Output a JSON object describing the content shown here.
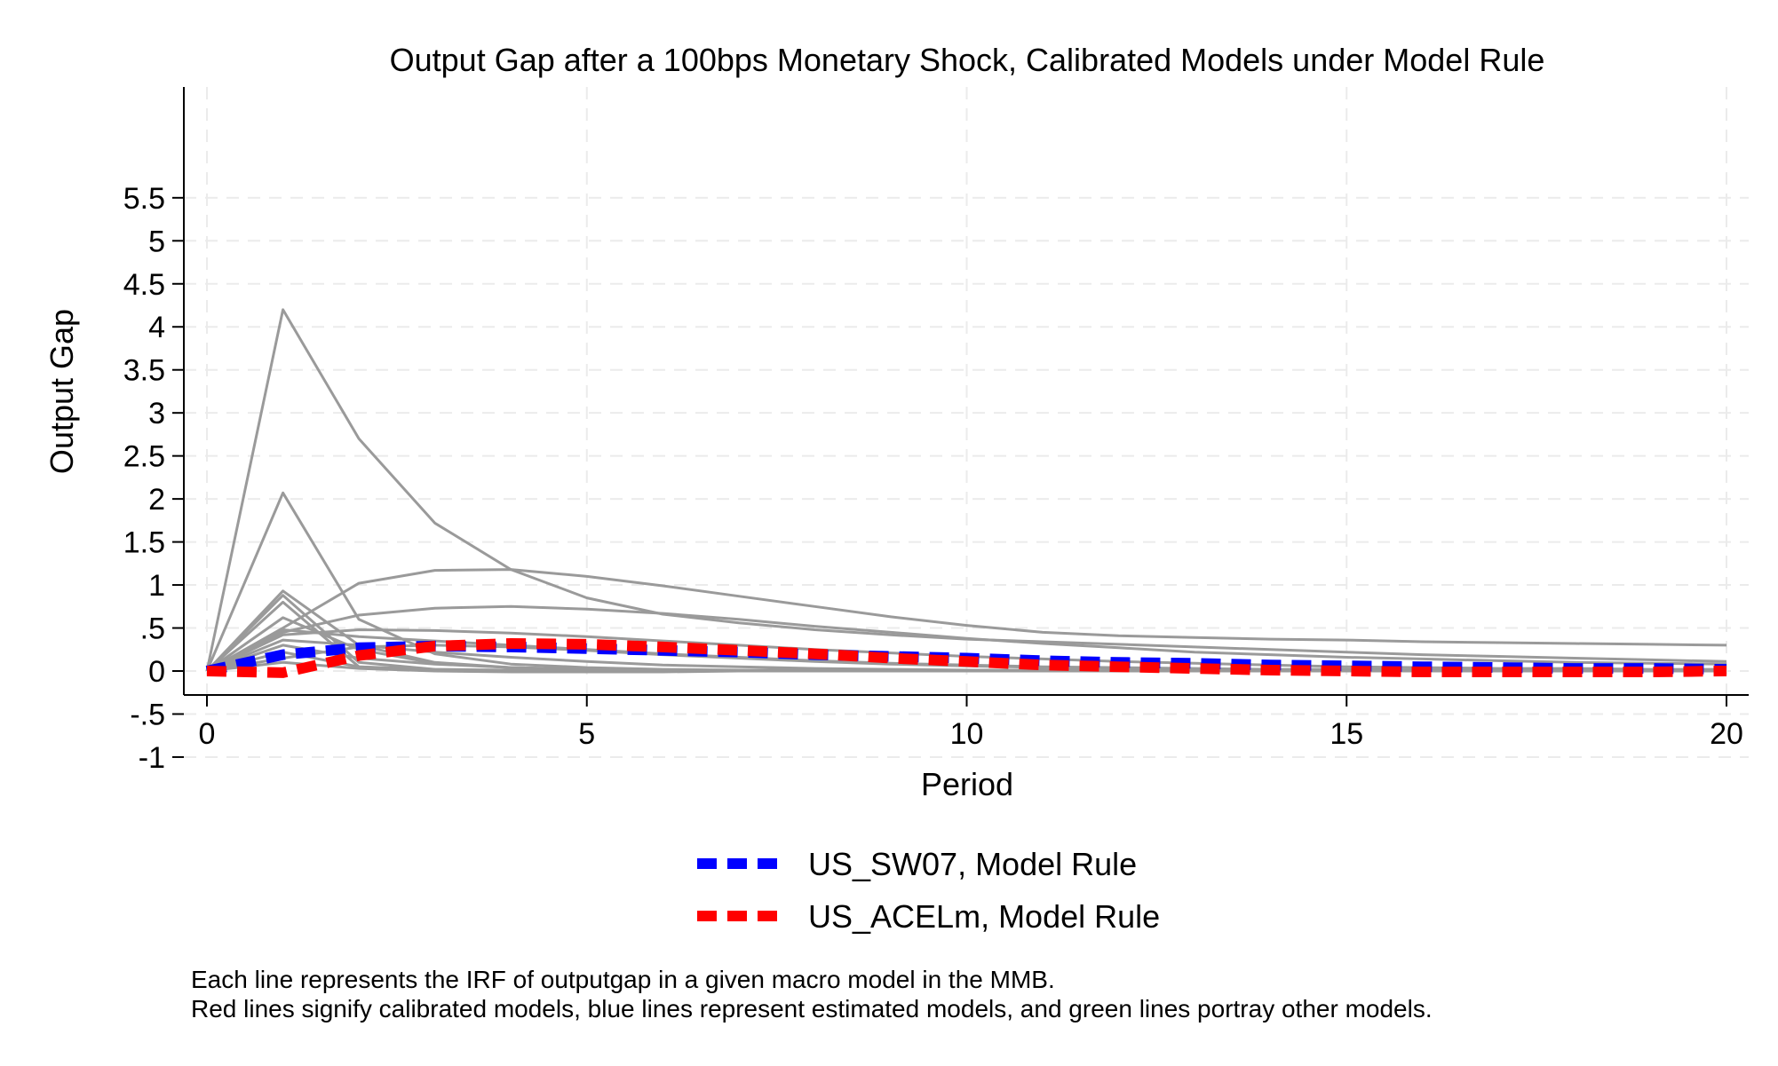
{
  "chart_data": {
    "type": "line",
    "title": "Output Gap after a 100bps Monetary Shock, Calibrated Models under Model Rule",
    "xlabel": "Period",
    "ylabel": "Output Gap",
    "xlim": [
      0,
      20
    ],
    "ylim": [
      -1,
      5.5
    ],
    "xticks": [
      0,
      5,
      10,
      15,
      20
    ],
    "xtick_labels": [
      "0",
      "5",
      "10",
      "15",
      "20"
    ],
    "yticks": [
      -1,
      -0.5,
      0,
      0.5,
      1,
      1.5,
      2,
      2.5,
      3,
      3.5,
      4,
      4.5,
      5,
      5.5
    ],
    "ytick_labels": [
      "-1",
      "-.5",
      "0",
      ".5",
      "1",
      "1.5",
      "2",
      "2.5",
      "3",
      "3.5",
      "4",
      "4.5",
      "5",
      "5.5"
    ],
    "grid": true,
    "legend_position": "bottom",
    "x": [
      0,
      1,
      2,
      3,
      4,
      5,
      6,
      7,
      8,
      9,
      10,
      11,
      12,
      13,
      14,
      15,
      16,
      17,
      18,
      19,
      20
    ],
    "background_series_color": "#9a9a9a",
    "background_series": [
      [
        0,
        4.2,
        2.7,
        1.72,
        1.18,
        0.85,
        0.66,
        0.56,
        0.48,
        0.42,
        0.37,
        0.34,
        0.31,
        0.28,
        0.25,
        0.22,
        0.19,
        0.17,
        0.15,
        0.13,
        0.11
      ],
      [
        0,
        2.07,
        0.6,
        0.2,
        0.08,
        0.04,
        0.02,
        0.01,
        0.01,
        0.0,
        0.0,
        0.0,
        0.0,
        0.0,
        0.0,
        0.0,
        0.0,
        0.0,
        0.0,
        0.0,
        0.0
      ],
      [
        0,
        0.5,
        1.02,
        1.17,
        1.18,
        1.1,
        0.99,
        0.87,
        0.75,
        0.63,
        0.53,
        0.45,
        0.41,
        0.39,
        0.37,
        0.36,
        0.34,
        0.33,
        0.32,
        0.31,
        0.3
      ],
      [
        0,
        0.45,
        0.65,
        0.73,
        0.75,
        0.72,
        0.67,
        0.6,
        0.52,
        0.45,
        0.38,
        0.32,
        0.27,
        0.22,
        0.19,
        0.16,
        0.14,
        0.12,
        0.1,
        0.09,
        0.08
      ],
      [
        0,
        0.93,
        0.3,
        0.1,
        0.04,
        0.02,
        0.01,
        0.0,
        0.0,
        0.0,
        0.0,
        0.0,
        0.0,
        0.0,
        0.0,
        0.0,
        0.0,
        0.0,
        0.0,
        0.0,
        0.0
      ],
      [
        0,
        0.88,
        0.1,
        0.02,
        0.0,
        0.0,
        0.0,
        0.0,
        0.0,
        0.0,
        0.0,
        0.0,
        0.0,
        0.0,
        0.0,
        0.0,
        0.0,
        0.0,
        0.0,
        0.0,
        0.0
      ],
      [
        0,
        0.62,
        0.25,
        0.09,
        0.04,
        0.02,
        0.01,
        0.0,
        0.0,
        0.0,
        0.0,
        0.0,
        0.0,
        0.0,
        0.0,
        0.0,
        0.0,
        0.0,
        0.0,
        0.0,
        0.0
      ],
      [
        0,
        0.48,
        0.4,
        0.35,
        0.3,
        0.25,
        0.2,
        0.16,
        0.12,
        0.09,
        0.07,
        0.05,
        0.04,
        0.03,
        0.02,
        0.02,
        0.01,
        0.01,
        0.01,
        0.0,
        0.0
      ],
      [
        0,
        0.42,
        0.48,
        0.47,
        0.44,
        0.4,
        0.35,
        0.3,
        0.25,
        0.21,
        0.17,
        0.14,
        0.11,
        0.09,
        0.07,
        0.05,
        0.04,
        0.03,
        0.03,
        0.02,
        0.02
      ],
      [
        0,
        0.36,
        0.3,
        0.22,
        0.16,
        0.11,
        0.07,
        0.05,
        0.03,
        0.02,
        0.01,
        0.01,
        0.0,
        0.0,
        0.0,
        0.0,
        0.0,
        0.0,
        0.0,
        0.0,
        0.0
      ],
      [
        0,
        0.3,
        0.15,
        0.08,
        0.04,
        0.02,
        0.01,
        0.0,
        0.0,
        0.0,
        0.0,
        0.0,
        0.0,
        0.0,
        0.0,
        0.0,
        0.0,
        0.0,
        0.0,
        0.0,
        0.0
      ],
      [
        0,
        0.22,
        0.05,
        0.01,
        0.0,
        0.0,
        0.0,
        0.0,
        0.0,
        0.0,
        0.0,
        0.0,
        0.0,
        0.0,
        0.0,
        0.0,
        0.0,
        0.0,
        0.0,
        0.0,
        0.0
      ],
      [
        0,
        0.15,
        0.28,
        0.3,
        0.28,
        0.24,
        0.19,
        0.15,
        0.11,
        0.08,
        0.06,
        0.04,
        0.03,
        0.02,
        0.01,
        0.01,
        0.0,
        0.0,
        0.0,
        0.0,
        0.0
      ],
      [
        0,
        0.8,
        0.05,
        0.02,
        0.01,
        0.0,
        0.0,
        0.0,
        0.0,
        0.0,
        0.0,
        0.0,
        0.0,
        0.0,
        0.0,
        0.0,
        0.0,
        0.0,
        0.0,
        0.0,
        0.0
      ],
      [
        0,
        0.1,
        0.03,
        0.0,
        -0.01,
        -0.01,
        -0.01,
        0.0,
        0.0,
        0.0,
        0.0,
        0.0,
        0.0,
        0.0,
        0.0,
        0.0,
        0.0,
        0.0,
        0.0,
        0.0,
        0.0
      ]
    ],
    "series": [
      {
        "name": "US_SW07, Model Rule",
        "color": "#0000ff",
        "values": [
          0,
          0.19,
          0.27,
          0.29,
          0.28,
          0.26,
          0.24,
          0.22,
          0.19,
          0.17,
          0.15,
          0.12,
          0.1,
          0.09,
          0.07,
          0.06,
          0.05,
          0.04,
          0.03,
          0.03,
          0.02
        ]
      },
      {
        "name": "US_ACELm, Model Rule",
        "color": "#ff0000",
        "values": [
          0,
          -0.02,
          0.18,
          0.29,
          0.32,
          0.31,
          0.28,
          0.24,
          0.2,
          0.15,
          0.11,
          0.07,
          0.05,
          0.03,
          0.01,
          0.0,
          -0.01,
          -0.01,
          -0.01,
          -0.01,
          0.0
        ]
      }
    ]
  },
  "notes": [
    "Each line represents the IRF of outputgap in a given macro model in the MMB.",
    "Red lines signify calibrated models, blue lines represent estimated models, and green lines portray other models."
  ]
}
